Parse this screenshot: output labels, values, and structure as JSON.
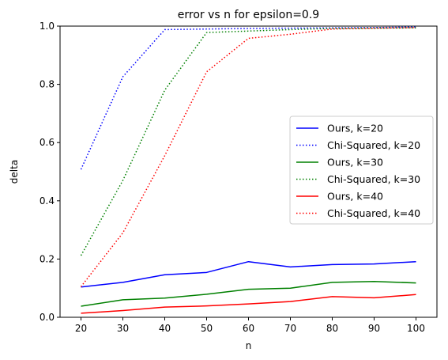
{
  "chart_data": {
    "type": "line",
    "title": "error vs n for epsilon=0.9",
    "xlabel": "n",
    "ylabel": "delta",
    "x": [
      20,
      30,
      40,
      50,
      60,
      70,
      80,
      90,
      100
    ],
    "xlim": [
      15,
      105
    ],
    "ylim": [
      0,
      1
    ],
    "xticks": [
      20,
      30,
      40,
      50,
      60,
      70,
      80,
      90,
      100
    ],
    "yticks": [
      0.0,
      0.2,
      0.4,
      0.6,
      0.8,
      1.0
    ],
    "ytick_labels": [
      "0.0",
      "0.2",
      "0.4",
      "0.6",
      "0.8",
      "1.0"
    ],
    "grid": false,
    "legend_position": "center-right",
    "series": [
      {
        "name": "Ours, k=20",
        "color": "#0000ff",
        "style": "solid",
        "values": [
          0.104,
          0.12,
          0.146,
          0.154,
          0.191,
          0.173,
          0.181,
          0.183,
          0.191
        ]
      },
      {
        "name": "Chi-Squared, k=20",
        "color": "#0000ff",
        "style": "dotted",
        "values": [
          0.508,
          0.826,
          0.988,
          0.99,
          0.992,
          0.993,
          0.994,
          0.995,
          0.997
        ]
      },
      {
        "name": "Ours, k=30",
        "color": "#008000",
        "style": "solid",
        "values": [
          0.038,
          0.06,
          0.066,
          0.079,
          0.096,
          0.1,
          0.12,
          0.123,
          0.118
        ]
      },
      {
        "name": "Chi-Squared, k=30",
        "color": "#008000",
        "style": "dotted",
        "values": [
          0.212,
          0.47,
          0.78,
          0.978,
          0.983,
          0.988,
          0.992,
          0.993,
          0.994
        ]
      },
      {
        "name": "Ours, k=40",
        "color": "#ff0000",
        "style": "solid",
        "values": [
          0.014,
          0.023,
          0.035,
          0.039,
          0.046,
          0.054,
          0.071,
          0.067,
          0.078
        ]
      },
      {
        "name": "Chi-Squared, k=40",
        "color": "#ff0000",
        "style": "dotted",
        "values": [
          0.105,
          0.29,
          0.555,
          0.843,
          0.958,
          0.972,
          0.99,
          0.993,
          0.995
        ]
      }
    ]
  }
}
